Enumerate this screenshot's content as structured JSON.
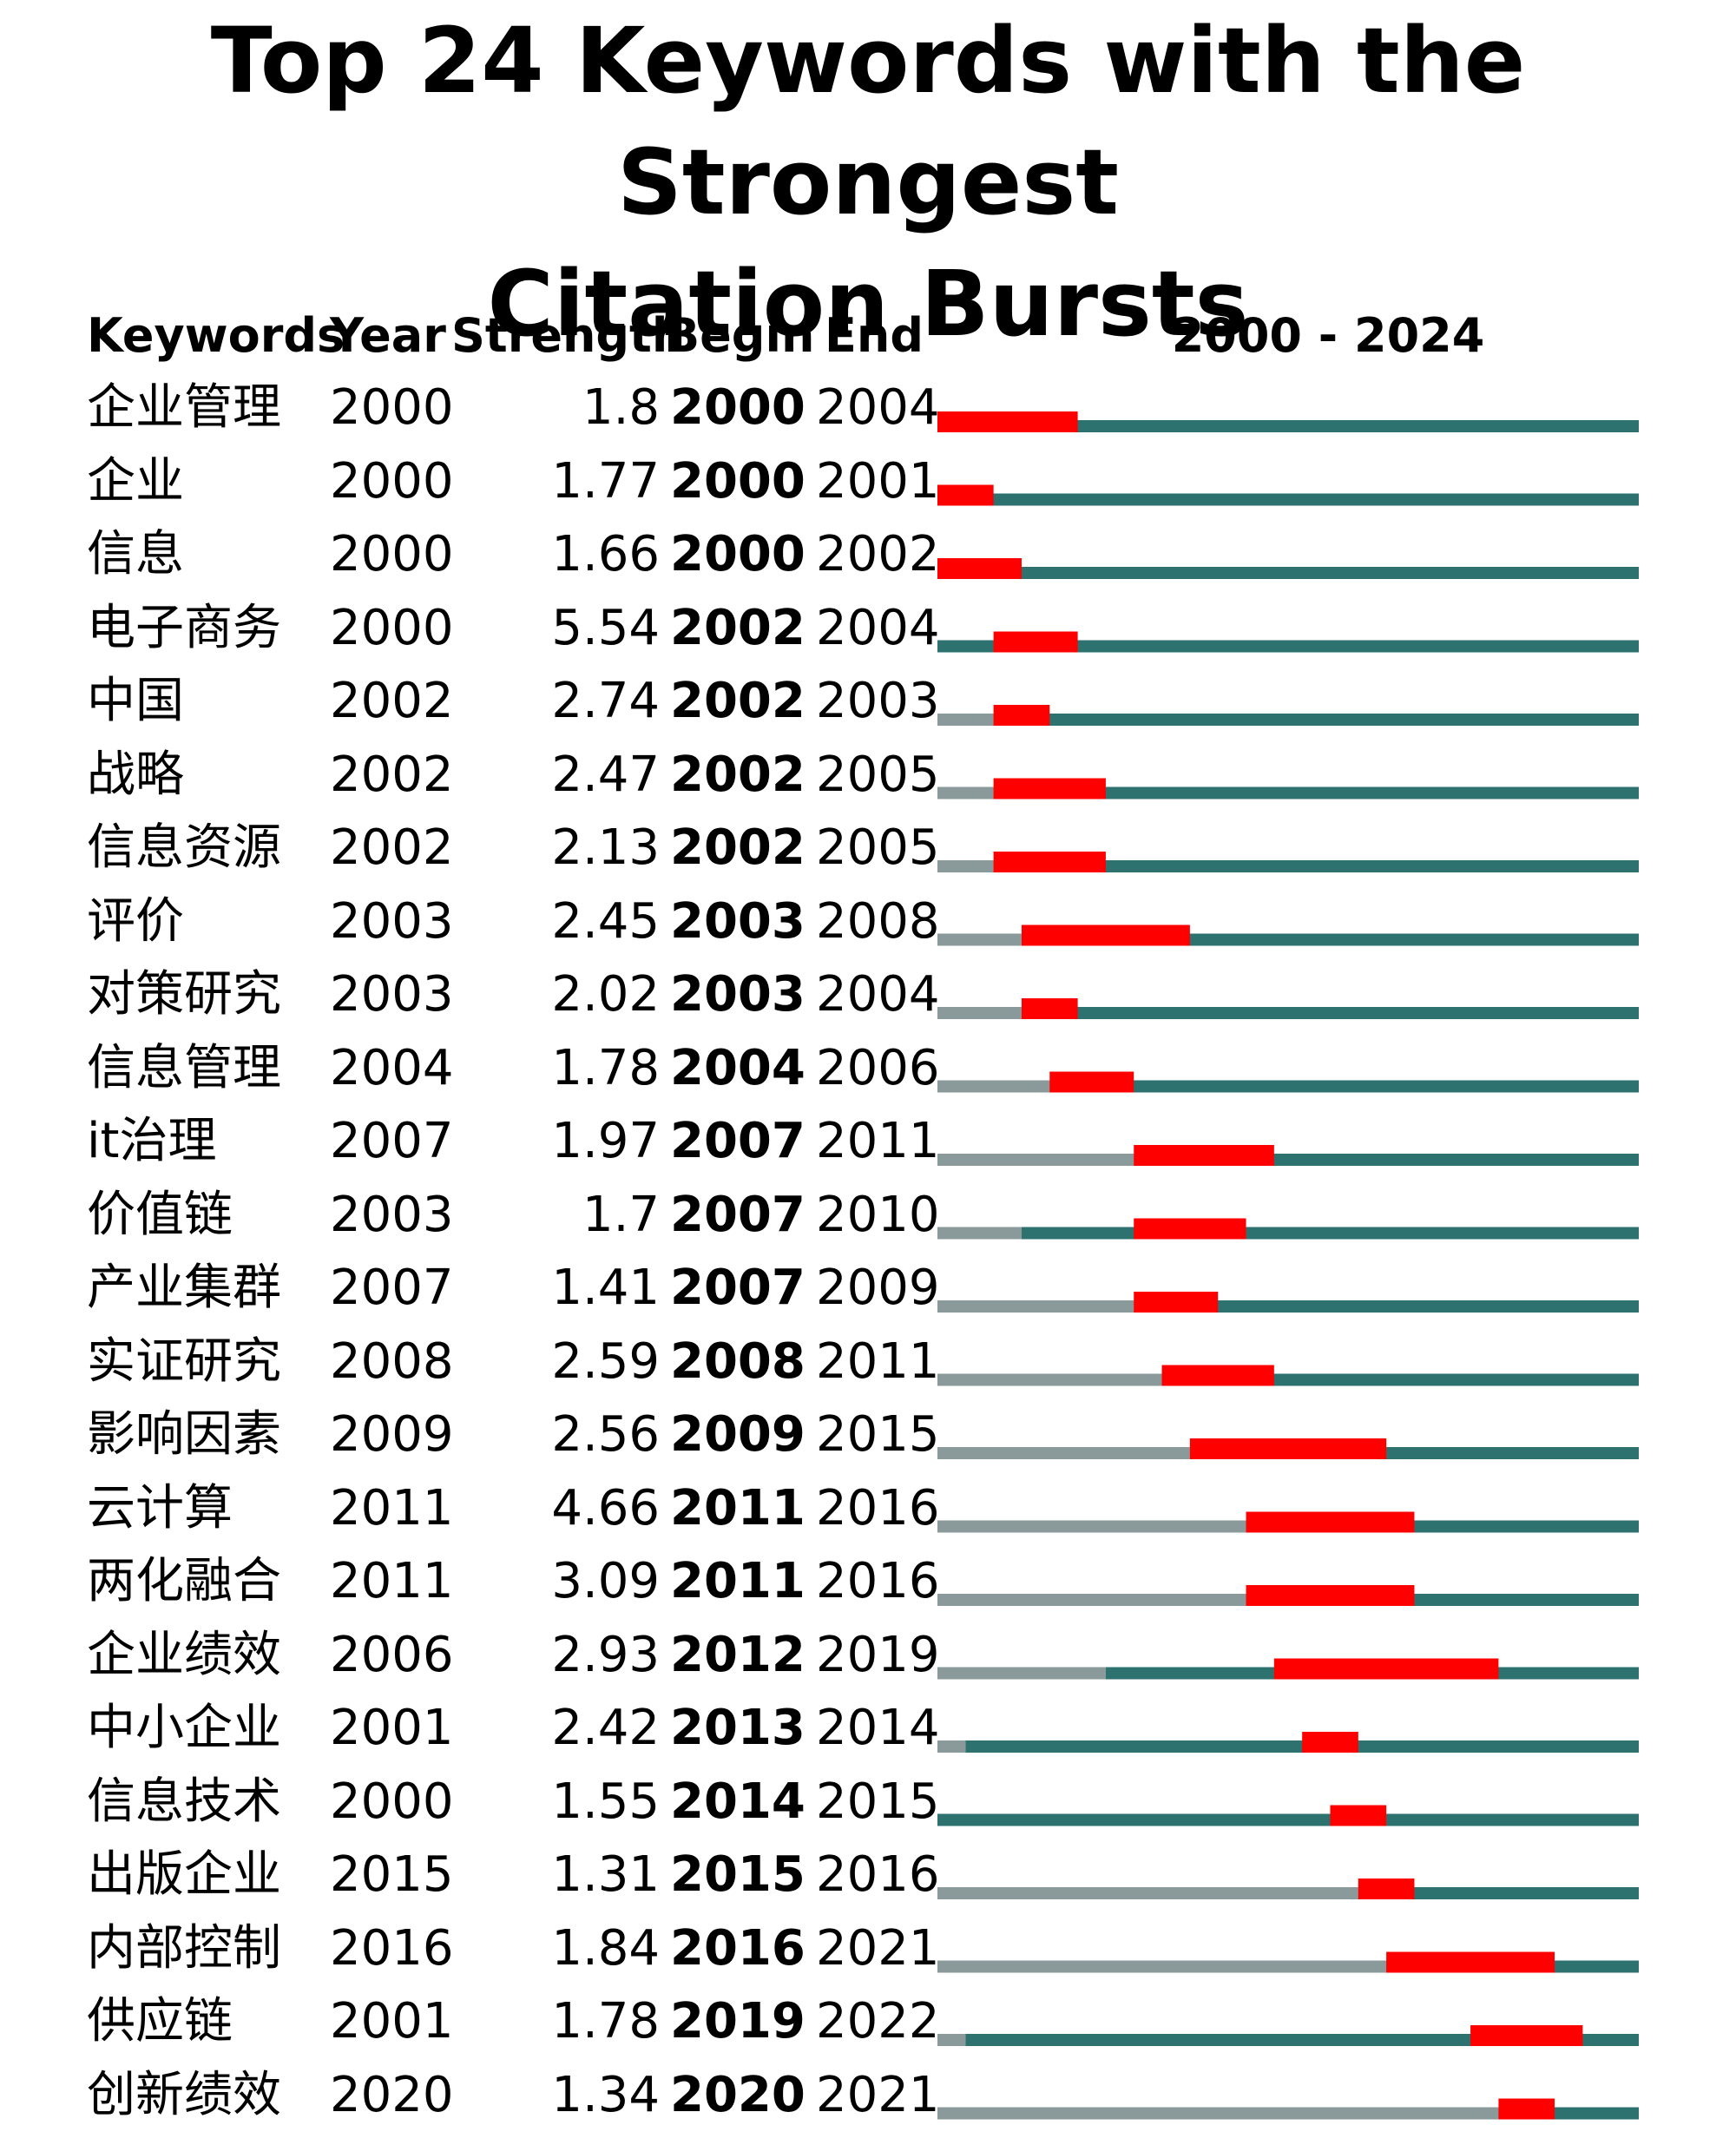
{
  "title": {
    "line1": "Top 24 Keywords with the Strongest",
    "line2": "Citation Bursts"
  },
  "header": {
    "keywords": "Keywords",
    "year": "Year",
    "strength": "Strength",
    "begin": "Begin",
    "end": "End",
    "range": "2000 - 2024"
  },
  "colors": {
    "burst": "#ff0000",
    "active": "#2e7270",
    "before": "#8a9a9a"
  },
  "chart_data": {
    "type": "table",
    "range": [
      2000,
      2024
    ],
    "columns": [
      "Keywords",
      "Year",
      "Strength",
      "Begin",
      "End"
    ],
    "rows": [
      {
        "keyword": "企业管理",
        "year": "2000",
        "strength": "1.8",
        "begin": "2000",
        "end": "2004"
      },
      {
        "keyword": "企业",
        "year": "2000",
        "strength": "1.77",
        "begin": "2000",
        "end": "2001"
      },
      {
        "keyword": "信息",
        "year": "2000",
        "strength": "1.66",
        "begin": "2000",
        "end": "2002"
      },
      {
        "keyword": "电子商务",
        "year": "2000",
        "strength": "5.54",
        "begin": "2002",
        "end": "2004"
      },
      {
        "keyword": "中国",
        "year": "2002",
        "strength": "2.74",
        "begin": "2002",
        "end": "2003"
      },
      {
        "keyword": "战略",
        "year": "2002",
        "strength": "2.47",
        "begin": "2002",
        "end": "2005"
      },
      {
        "keyword": "信息资源",
        "year": "2002",
        "strength": "2.13",
        "begin": "2002",
        "end": "2005"
      },
      {
        "keyword": "评价",
        "year": "2003",
        "strength": "2.45",
        "begin": "2003",
        "end": "2008"
      },
      {
        "keyword": "对策研究",
        "year": "2003",
        "strength": "2.02",
        "begin": "2003",
        "end": "2004"
      },
      {
        "keyword": "信息管理",
        "year": "2004",
        "strength": "1.78",
        "begin": "2004",
        "end": "2006"
      },
      {
        "keyword": "it治理",
        "year": "2007",
        "strength": "1.97",
        "begin": "2007",
        "end": "2011"
      },
      {
        "keyword": "价值链",
        "year": "2003",
        "strength": "1.7",
        "begin": "2007",
        "end": "2010"
      },
      {
        "keyword": "产业集群",
        "year": "2007",
        "strength": "1.41",
        "begin": "2007",
        "end": "2009"
      },
      {
        "keyword": "实证研究",
        "year": "2008",
        "strength": "2.59",
        "begin": "2008",
        "end": "2011"
      },
      {
        "keyword": "影响因素",
        "year": "2009",
        "strength": "2.56",
        "begin": "2009",
        "end": "2015"
      },
      {
        "keyword": "云计算",
        "year": "2011",
        "strength": "4.66",
        "begin": "2011",
        "end": "2016"
      },
      {
        "keyword": "两化融合",
        "year": "2011",
        "strength": "3.09",
        "begin": "2011",
        "end": "2016"
      },
      {
        "keyword": "企业绩效",
        "year": "2006",
        "strength": "2.93",
        "begin": "2012",
        "end": "2019"
      },
      {
        "keyword": "中小企业",
        "year": "2001",
        "strength": "2.42",
        "begin": "2013",
        "end": "2014"
      },
      {
        "keyword": "信息技术",
        "year": "2000",
        "strength": "1.55",
        "begin": "2014",
        "end": "2015"
      },
      {
        "keyword": "出版企业",
        "year": "2015",
        "strength": "1.31",
        "begin": "2015",
        "end": "2016"
      },
      {
        "keyword": "内部控制",
        "year": "2016",
        "strength": "1.84",
        "begin": "2016",
        "end": "2021"
      },
      {
        "keyword": "供应链",
        "year": "2001",
        "strength": "1.78",
        "begin": "2019",
        "end": "2022"
      },
      {
        "keyword": "创新绩效",
        "year": "2020",
        "strength": "1.34",
        "begin": "2020",
        "end": "2021"
      }
    ]
  }
}
